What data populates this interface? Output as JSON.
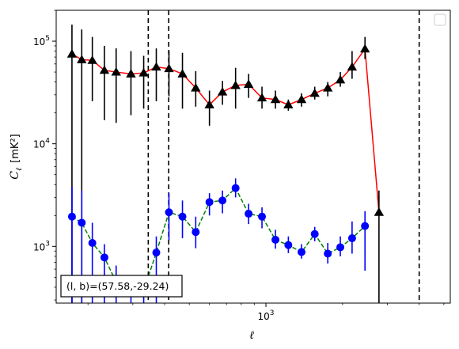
{
  "chart_data": {
    "type": "line",
    "xscale": "log",
    "yscale": "log",
    "xlabel": "ℓ",
    "ylabel_symbol": "C",
    "ylabel_sub": "ℓ",
    "ylabel_unit": "[mK²]",
    "xlim": [
      150,
      5300
    ],
    "ylim": [
      280,
      200000
    ],
    "x_tick_labels": [
      {
        "value": 1000,
        "base": "10",
        "exp": "3"
      }
    ],
    "y_tick_labels": [
      {
        "value": 1000,
        "base": "10",
        "exp": "3"
      },
      {
        "value": 10000,
        "base": "10",
        "exp": "4"
      },
      {
        "value": 100000,
        "base": "10",
        "exp": "5"
      }
    ],
    "vlines": [
      345,
      415,
      4000
    ],
    "annotation": "(l, b)=(57.58,-29.24)",
    "legend": {
      "position": "top-right",
      "entries": []
    },
    "series": [
      {
        "marker": "triangle",
        "line_color": "#ff0000",
        "marker_color": "#000000",
        "error_color": "#000000",
        "line_style": "solid",
        "points": [
          {
            "x": 173,
            "y": 75000,
            "lo": 280,
            "hi": 145000
          },
          {
            "x": 189,
            "y": 66000,
            "lo": 280,
            "hi": 130000
          },
          {
            "x": 208,
            "y": 65000,
            "lo": 26000,
            "hi": 110000
          },
          {
            "x": 232,
            "y": 52000,
            "lo": 17000,
            "hi": 90000
          },
          {
            "x": 258,
            "y": 50000,
            "lo": 16000,
            "hi": 85000
          },
          {
            "x": 295,
            "y": 48000,
            "lo": 19000,
            "hi": 80000
          },
          {
            "x": 331,
            "y": 49000,
            "lo": 22000,
            "hi": 72000
          },
          {
            "x": 371,
            "y": 56000,
            "lo": 26000,
            "hi": 85000
          },
          {
            "x": 416,
            "y": 54000,
            "lo": 29000,
            "hi": 81000
          },
          {
            "x": 470,
            "y": 48000,
            "lo": 22000,
            "hi": 77000
          },
          {
            "x": 530,
            "y": 35000,
            "lo": 23000,
            "hi": 51000
          },
          {
            "x": 600,
            "y": 24000,
            "lo": 15000,
            "hi": 33000
          },
          {
            "x": 675,
            "y": 32000,
            "lo": 24000,
            "hi": 41000
          },
          {
            "x": 760,
            "y": 37000,
            "lo": 22000,
            "hi": 55000
          },
          {
            "x": 855,
            "y": 38000,
            "lo": 28000,
            "hi": 48000
          },
          {
            "x": 965,
            "y": 28000,
            "lo": 22000,
            "hi": 36000
          },
          {
            "x": 1090,
            "y": 27000,
            "lo": 22000,
            "hi": 33000
          },
          {
            "x": 1225,
            "y": 24000,
            "lo": 21000,
            "hi": 27000
          },
          {
            "x": 1380,
            "y": 27000,
            "lo": 23000,
            "hi": 31000
          },
          {
            "x": 1555,
            "y": 31000,
            "lo": 27000,
            "hi": 36000
          },
          {
            "x": 1750,
            "y": 35000,
            "lo": 29000,
            "hi": 40000
          },
          {
            "x": 1960,
            "y": 42000,
            "lo": 36000,
            "hi": 50000
          },
          {
            "x": 2180,
            "y": 56000,
            "lo": 43000,
            "hi": 80000
          },
          {
            "x": 2450,
            "y": 84000,
            "lo": 67000,
            "hi": 110000
          },
          {
            "x": 2780,
            "y": 2150,
            "lo": 280,
            "hi": 3500
          }
        ]
      },
      {
        "marker": "circle",
        "line_color": "#008000",
        "marker_color": "#0000ff",
        "error_color": "#0000ff",
        "line_style": "dashed",
        "points": [
          {
            "x": 173,
            "y": 1950,
            "lo": 280,
            "hi": 3800
          },
          {
            "x": 189,
            "y": 1700,
            "lo": 280,
            "hi": 3500
          },
          {
            "x": 208,
            "y": 1080,
            "lo": 280,
            "hi": 1700
          },
          {
            "x": 232,
            "y": 780,
            "lo": 280,
            "hi": 1050
          },
          {
            "x": 258,
            "y": 450,
            "lo": 280,
            "hi": 650
          },
          {
            "x": 295,
            "y": 360,
            "lo": 280,
            "hi": 520
          },
          {
            "x": 331,
            "y": 370,
            "lo": 280,
            "hi": 520
          },
          {
            "x": 371,
            "y": 870,
            "lo": 280,
            "hi": 1250
          },
          {
            "x": 416,
            "y": 2150,
            "lo": 1150,
            "hi": 3300
          },
          {
            "x": 470,
            "y": 1950,
            "lo": 1200,
            "hi": 2800
          },
          {
            "x": 530,
            "y": 1380,
            "lo": 960,
            "hi": 1950
          },
          {
            "x": 600,
            "y": 2700,
            "lo": 2000,
            "hi": 3300
          },
          {
            "x": 675,
            "y": 2800,
            "lo": 2100,
            "hi": 3500
          },
          {
            "x": 760,
            "y": 3700,
            "lo": 3000,
            "hi": 4600
          },
          {
            "x": 855,
            "y": 2080,
            "lo": 1650,
            "hi": 2600
          },
          {
            "x": 965,
            "y": 1950,
            "lo": 1500,
            "hi": 2400
          },
          {
            "x": 1090,
            "y": 1160,
            "lo": 950,
            "hi": 1450
          },
          {
            "x": 1225,
            "y": 1030,
            "lo": 860,
            "hi": 1250
          },
          {
            "x": 1380,
            "y": 880,
            "lo": 760,
            "hi": 1050
          },
          {
            "x": 1555,
            "y": 1320,
            "lo": 1120,
            "hi": 1550
          },
          {
            "x": 1750,
            "y": 850,
            "lo": 680,
            "hi": 1080
          },
          {
            "x": 1960,
            "y": 980,
            "lo": 800,
            "hi": 1250
          },
          {
            "x": 2180,
            "y": 1200,
            "lo": 850,
            "hi": 1750
          },
          {
            "x": 2450,
            "y": 1580,
            "lo": 580,
            "hi": 2200
          }
        ]
      }
    ]
  }
}
